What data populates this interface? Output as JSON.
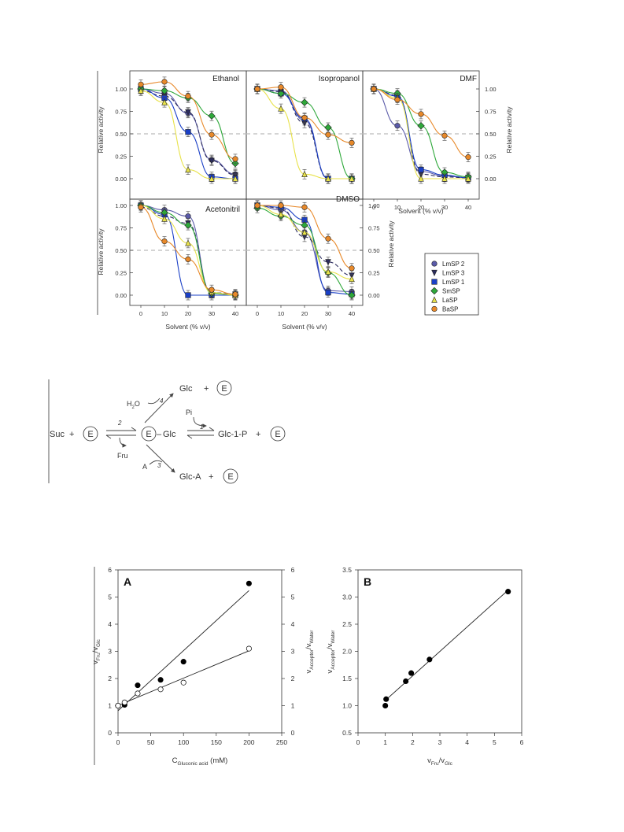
{
  "solvent_figure": {
    "y_label": "Relative activity",
    "x_label": "Solvent (% v/v)",
    "y_ticks": [
      "0.00",
      "0.25",
      "0.50",
      "0.75",
      "1.00"
    ],
    "x_ticks": [
      "0",
      "10",
      "20",
      "30",
      "40"
    ],
    "legend": [
      "LmSP 2",
      "LmSP 3",
      "LmSP 1",
      "SmSP",
      "LaSP",
      "BaSP"
    ],
    "panel_titles": [
      "Ethanol",
      "Isopropanol",
      "DMF",
      "Acetonitril",
      "DMSO"
    ]
  },
  "scheme": {
    "suc": "Suc",
    "plus": "+",
    "e": "E",
    "glc": "Glc",
    "e_glc_sep": "–",
    "fru": "Fru",
    "h2o": "H",
    "h2o_sub": "2",
    "h2o_o": "O",
    "pi": "Pi",
    "a": "A",
    "glc1p": "Glc-1-P",
    "glca": "Glc-A",
    "step1": "1",
    "step2": "2",
    "step3": "3",
    "step4": "4"
  },
  "ratio_figure": {
    "panel_a_letter": "A",
    "panel_b_letter": "B",
    "a_xlabel_main": "C",
    "a_xlabel_sub": "Gluconic acid",
    "a_xlabel_unit": " (mM)",
    "a_ylabel_left_main1": "v",
    "a_ylabel_left_sub1": "Fru",
    "a_ylabel_left_slash": "/v",
    "a_ylabel_left_sub2": "Glc",
    "a_ylabel_right_main1": "v",
    "a_ylabel_right_sub1": "Acceptor",
    "a_ylabel_right_slash": "/v",
    "a_ylabel_right_sub2": "Water",
    "a_x_ticks": [
      "0",
      "50",
      "100",
      "150",
      "200",
      "250"
    ],
    "a_y_ticks": [
      "0",
      "1",
      "2",
      "3",
      "4",
      "5",
      "6"
    ],
    "b_x_ticks": [
      "0",
      "1",
      "2",
      "3",
      "4",
      "5",
      "6"
    ],
    "b_y_ticks": [
      "0.5",
      "1.0",
      "1.5",
      "2.0",
      "2.5",
      "3.0",
      "3.5"
    ]
  },
  "chart_data": [
    {
      "type": "scatter",
      "panel": "Ethanol",
      "xlabel": "Solvent (% v/v)",
      "ylabel": "Relative activity",
      "xlim": [
        -5,
        45
      ],
      "ylim": [
        -0.1,
        1.2
      ],
      "x": [
        0,
        10,
        20,
        30,
        40
      ],
      "series": [
        {
          "name": "LmSP 2",
          "color": "#5a5aa8",
          "values": [
            1.0,
            0.95,
            0.73,
            0.21,
            0.05
          ]
        },
        {
          "name": "LmSP 3",
          "color": "#2c2c5e",
          "values": [
            0.98,
            0.92,
            0.74,
            0.2,
            0.04
          ]
        },
        {
          "name": "LmSP 1",
          "color": "#1a3fc6",
          "values": [
            1.0,
            0.9,
            0.52,
            0.02,
            0.0
          ]
        },
        {
          "name": "SmSP",
          "color": "#2ea83a",
          "values": [
            1.0,
            0.98,
            0.9,
            0.7,
            0.17
          ]
        },
        {
          "name": "LaSP",
          "color": "#e8e24a",
          "values": [
            0.98,
            0.85,
            0.1,
            0.0,
            0.0
          ]
        },
        {
          "name": "BaSP",
          "color": "#e8892a",
          "values": [
            1.05,
            1.08,
            0.92,
            0.49,
            0.22
          ]
        }
      ]
    },
    {
      "type": "scatter",
      "panel": "Isopropanol",
      "xlabel": "Solvent (% v/v)",
      "ylabel": "Relative activity",
      "xlim": [
        -5,
        45
      ],
      "ylim": [
        -0.1,
        1.2
      ],
      "x": [
        0,
        10,
        20,
        30,
        40
      ],
      "series": [
        {
          "name": "LmSP 2",
          "color": "#5a5aa8",
          "values": [
            1.0,
            0.98,
            0.65,
            0.0,
            0.0
          ]
        },
        {
          "name": "LmSP 3",
          "color": "#2c2c5e",
          "values": [
            1.0,
            0.97,
            0.62,
            0.0,
            0.0
          ]
        },
        {
          "name": "LmSP 1",
          "color": "#1a3fc6",
          "values": [
            1.0,
            0.95,
            0.67,
            0.0,
            0.0
          ]
        },
        {
          "name": "SmSP",
          "color": "#2ea83a",
          "values": [
            1.0,
            0.95,
            0.85,
            0.57,
            0.0
          ]
        },
        {
          "name": "LaSP",
          "color": "#e8e24a",
          "values": [
            1.0,
            0.78,
            0.05,
            0.0,
            0.0
          ]
        },
        {
          "name": "BaSP",
          "color": "#e8892a",
          "values": [
            1.0,
            1.02,
            0.68,
            0.49,
            0.4
          ]
        }
      ]
    },
    {
      "type": "scatter",
      "panel": "DMF",
      "xlabel": "Solvent (% v/v)",
      "ylabel": "Relative activity",
      "xlim": [
        -5,
        45
      ],
      "ylim": [
        -0.1,
        1.2
      ],
      "x": [
        0,
        10,
        20,
        30,
        40
      ],
      "series": [
        {
          "name": "LmSP 2",
          "color": "#5a5aa8",
          "values": [
            1.0,
            0.59,
            0.08,
            0.03,
            0.01
          ]
        },
        {
          "name": "LmSP 3",
          "color": "#2c2c5e",
          "values": [
            1.0,
            0.93,
            0.05,
            0.02,
            0.01
          ]
        },
        {
          "name": "LmSP 1",
          "color": "#1a3fc6",
          "values": [
            1.0,
            0.92,
            0.1,
            0.04,
            0.01
          ]
        },
        {
          "name": "SmSP",
          "color": "#2ea83a",
          "values": [
            1.0,
            0.95,
            0.59,
            0.07,
            0.02
          ]
        },
        {
          "name": "LaSP",
          "color": "#e8e24a",
          "values": [
            1.0,
            0.9,
            0.0,
            0.0,
            0.0
          ]
        },
        {
          "name": "BaSP",
          "color": "#e8892a",
          "values": [
            1.0,
            0.88,
            0.72,
            0.48,
            0.24
          ]
        }
      ]
    },
    {
      "type": "scatter",
      "panel": "Acetonitril",
      "xlabel": "Solvent (% v/v)",
      "ylabel": "Relative activity",
      "xlim": [
        -5,
        45
      ],
      "ylim": [
        -0.1,
        1.2
      ],
      "x": [
        0,
        10,
        20,
        30,
        40
      ],
      "series": [
        {
          "name": "LmSP 2",
          "color": "#5a5aa8",
          "values": [
            1.0,
            0.95,
            0.88,
            0.02,
            0.01
          ]
        },
        {
          "name": "LmSP 3",
          "color": "#2c2c5e",
          "values": [
            0.98,
            0.88,
            0.8,
            0.03,
            0.01
          ]
        },
        {
          "name": "LmSP 1",
          "color": "#1a3fc6",
          "values": [
            1.0,
            0.9,
            0.0,
            0.0,
            0.0
          ]
        },
        {
          "name": "SmSP",
          "color": "#2ea83a",
          "values": [
            1.0,
            0.92,
            0.78,
            0.02,
            0.0
          ]
        },
        {
          "name": "LaSP",
          "color": "#e8e24a",
          "values": [
            1.0,
            0.85,
            0.58,
            0.03,
            0.0
          ]
        },
        {
          "name": "BaSP",
          "color": "#e8892a",
          "values": [
            0.98,
            0.6,
            0.4,
            0.06,
            0.01
          ]
        }
      ]
    },
    {
      "type": "scatter",
      "panel": "DMSO",
      "xlabel": "Solvent (% v/v)",
      "ylabel": "Relative activity",
      "xlim": [
        -5,
        45
      ],
      "ylim": [
        -0.1,
        1.2
      ],
      "x": [
        0,
        10,
        20,
        30,
        40
      ],
      "series": [
        {
          "name": "LmSP 2",
          "color": "#5a5aa8",
          "values": [
            1.0,
            0.95,
            0.7,
            0.05,
            0.04
          ]
        },
        {
          "name": "LmSP 3",
          "color": "#2c2c5e",
          "values": [
            1.0,
            0.97,
            0.65,
            0.37,
            0.22
          ]
        },
        {
          "name": "LmSP 1",
          "color": "#1a3fc6",
          "values": [
            1.0,
            0.98,
            0.84,
            0.03,
            0.01
          ]
        },
        {
          "name": "SmSP",
          "color": "#2ea83a",
          "values": [
            0.97,
            0.88,
            0.78,
            0.25,
            0.0
          ]
        },
        {
          "name": "LaSP",
          "color": "#e8e24a",
          "values": [
            1.0,
            0.9,
            0.7,
            0.26,
            0.18
          ]
        },
        {
          "name": "BaSP",
          "color": "#e8892a",
          "values": [
            1.0,
            1.0,
            0.98,
            0.63,
            0.3
          ]
        }
      ]
    },
    {
      "type": "scatter",
      "panel": "A",
      "xlabel": "C Gluconic acid (mM)",
      "ylabel": "vFru/vGlc",
      "y2label": "vAcceptor/vWater",
      "xlim": [
        0,
        250
      ],
      "ylim": [
        0,
        6
      ],
      "series": [
        {
          "marker": "filled",
          "x": [
            0,
            10,
            30,
            65,
            100,
            200
          ],
          "values": [
            1.0,
            1.03,
            1.75,
            1.95,
            2.62,
            5.5
          ]
        },
        {
          "marker": "open",
          "x": [
            0,
            10,
            30,
            65,
            100,
            200
          ],
          "values": [
            1.0,
            1.12,
            1.45,
            1.6,
            1.85,
            3.1
          ]
        }
      ]
    },
    {
      "type": "scatter",
      "panel": "B",
      "xlabel": "vFru/vGlc",
      "ylabel": "vAcceptor/vWater",
      "xlim": [
        0,
        6
      ],
      "ylim": [
        0.5,
        3.5
      ],
      "series": [
        {
          "marker": "filled",
          "x": [
            1.0,
            1.03,
            1.75,
            1.95,
            2.62,
            5.5
          ],
          "values": [
            1.0,
            1.12,
            1.45,
            1.6,
            1.85,
            3.1
          ]
        }
      ]
    }
  ]
}
